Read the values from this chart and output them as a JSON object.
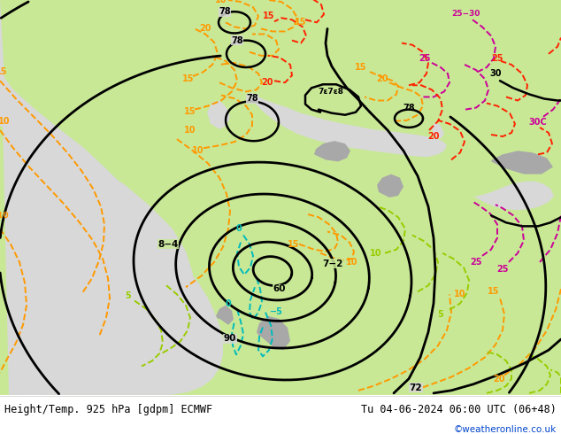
{
  "title_left": "Height/Temp. 925 hPa [gdpm] ECMWF",
  "title_right": "Tu 04-06-2024 06:00 UTC (06+48)",
  "watermark": "©weatheronline.co.uk",
  "bg_color": "#ffffff",
  "fig_width": 6.34,
  "fig_height": 4.9,
  "dpi": 100,
  "land_color": "#c8e896",
  "sea_color": "#d8d8d8",
  "highland_color": "#aaaaaa",
  "black": "#000000",
  "orange": "#ff9900",
  "red": "#ff2200",
  "cyan": "#00bbbb",
  "green": "#99cc00",
  "magenta": "#cc0099",
  "title_fontsize": 8.5,
  "watermark_fontsize": 7.5,
  "watermark_color": "#0044cc",
  "contour_lw": 1.8,
  "temp_lw": 1.4
}
